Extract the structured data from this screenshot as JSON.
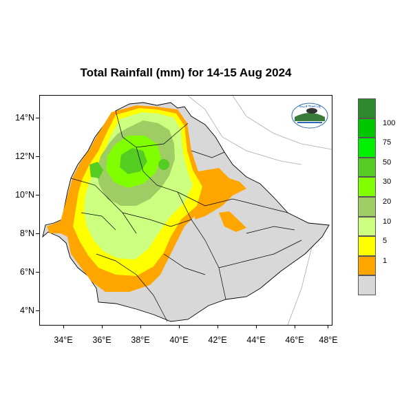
{
  "title": "Total Rainfall (mm) for 14-15 Aug 2024",
  "axes": {
    "lat_labels": [
      "14°N",
      "12°N",
      "10°N",
      "8°N",
      "6°N",
      "4°N"
    ],
    "lon_labels": [
      "34°E",
      "36°E",
      "38°E",
      "40°E",
      "42°E",
      "44°E",
      "46°E",
      "48°E"
    ]
  },
  "legend": {
    "colors": [
      "#2d8a2d",
      "#00c800",
      "#00f000",
      "#55cc22",
      "#80ff00",
      "#a0cc66",
      "#ccff80",
      "#ffff00",
      "#ffa500",
      "#d8d8d8"
    ],
    "labels": [
      "100",
      "75",
      "50",
      "30",
      "20",
      "10",
      "5",
      "1"
    ]
  },
  "logo": {
    "name": "national-meteorology-agency-logo"
  },
  "map_colors": {
    "land": "#d8d8d8",
    "border": "#000000",
    "sea_line": "#aaaaaa"
  }
}
